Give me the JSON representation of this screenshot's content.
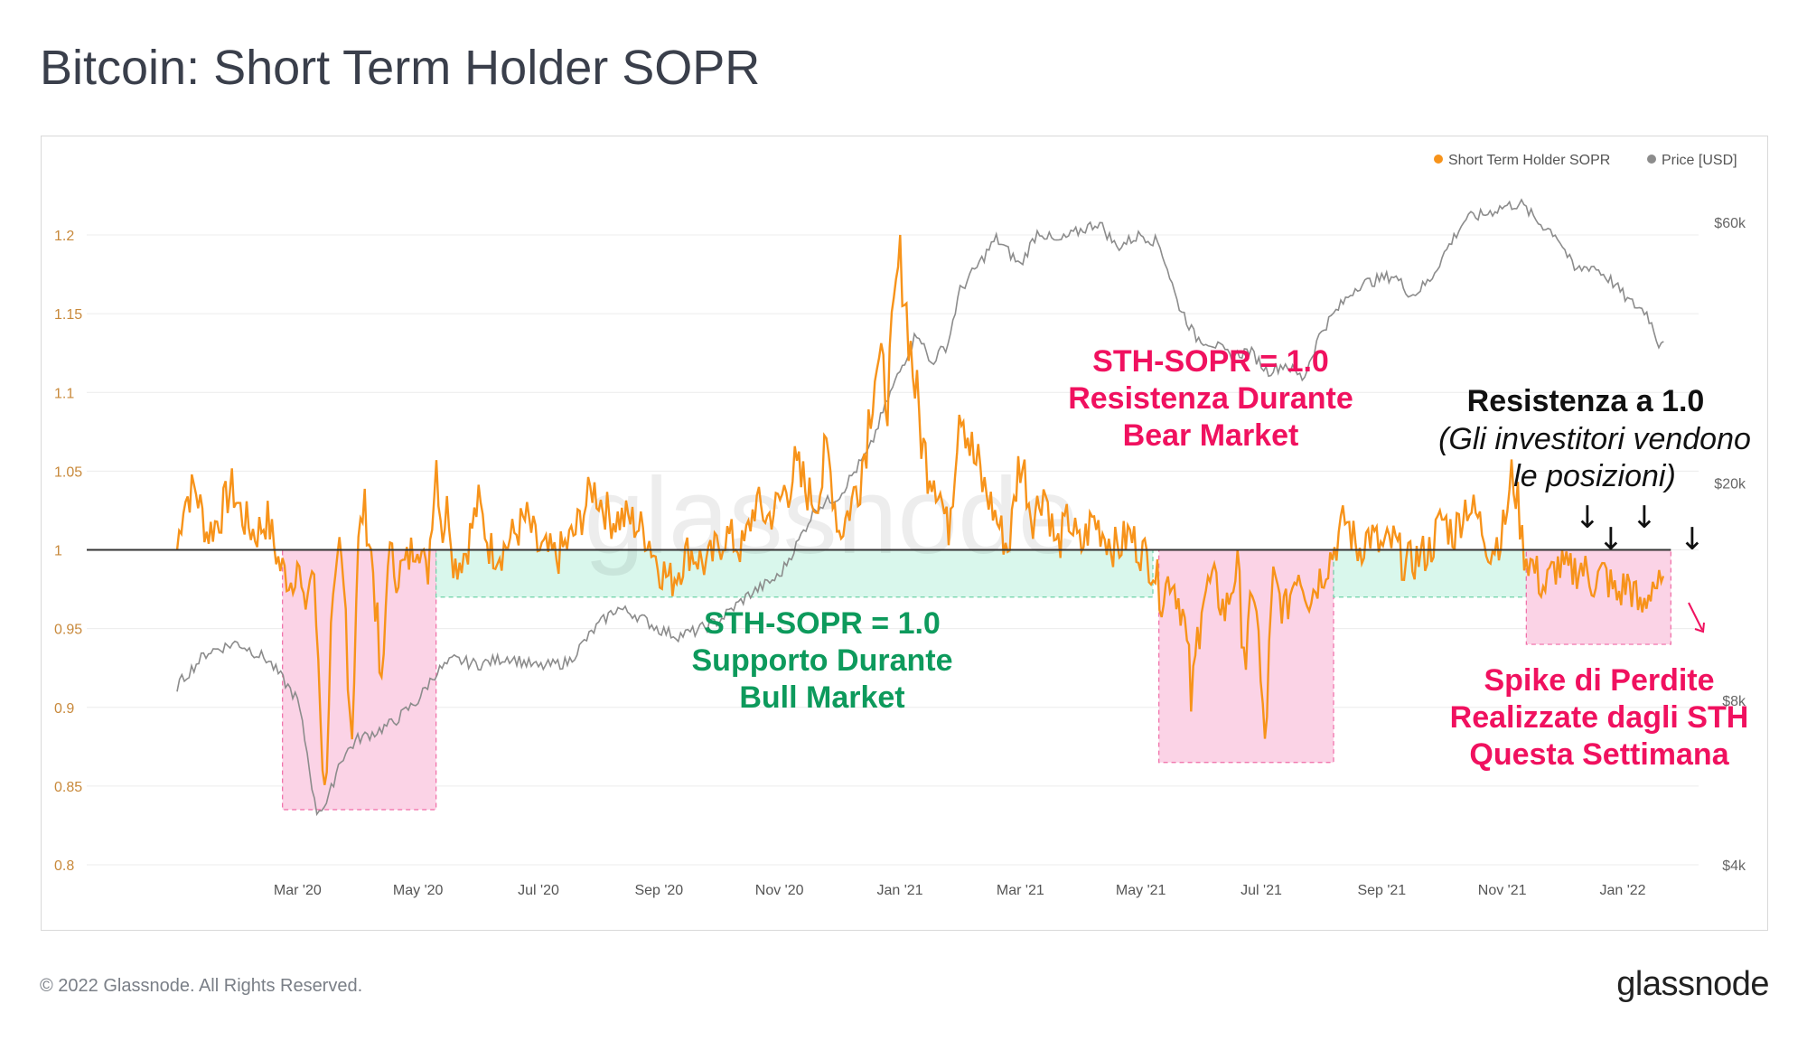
{
  "header": {
    "title": "Bitcoin: Short Term Holder SOPR"
  },
  "footer": {
    "copyright": "© 2022 Glassnode. All Rights Reserved.",
    "logo": "glassnode"
  },
  "watermark": "glassnode",
  "colors": {
    "sopr": "#f7931a",
    "price": "#8c8c8c",
    "baseline": "#333333",
    "zone_pink": "#fbd3e6",
    "zone_green": "#d9f7ec",
    "accent_pink": "#f0115f",
    "accent_green": "#0d9a5c"
  },
  "annotations": {
    "bear": [
      "STH-SOPR = 1.0",
      "Resistenza Durante",
      "Bear Market"
    ],
    "bull": [
      "STH-SOPR = 1.0",
      "Supporto Durante",
      "Bull Market"
    ],
    "resistance_title": "Resistenza a 1.0",
    "resistance_sub": [
      "(Gli investitori vendono",
      "le posizioni)"
    ],
    "spike": [
      "Spike di Perdite",
      "Realizzate dagli STH",
      "Questa Settimana"
    ],
    "arrow_glyph": "↓"
  },
  "chart_data": {
    "type": "line",
    "title": "Bitcoin: Short Term Holder SOPR",
    "legend": {
      "position": "top-right",
      "entries": [
        {
          "name": "Short Term Holder SOPR",
          "color": "#f7931a"
        },
        {
          "name": "Price [USD]",
          "color": "#8c8c8c"
        }
      ]
    },
    "x_range_months": [
      0,
      24
    ],
    "x_ticks": [
      {
        "label": "Mar '20",
        "m": 2
      },
      {
        "label": "May '20",
        "m": 4
      },
      {
        "label": "Jul '20",
        "m": 6
      },
      {
        "label": "Sep '20",
        "m": 8
      },
      {
        "label": "Nov '20",
        "m": 10
      },
      {
        "label": "Jan '21",
        "m": 12
      },
      {
        "label": "Mar '21",
        "m": 14
      },
      {
        "label": "May '21",
        "m": 16
      },
      {
        "label": "Jul '21",
        "m": 18
      },
      {
        "label": "Sep '21",
        "m": 20
      },
      {
        "label": "Nov '21",
        "m": 22
      },
      {
        "label": "Jan '22",
        "m": 24
      }
    ],
    "y_left": {
      "min": 0.8,
      "max": 1.2,
      "ticks": [
        "0.8",
        "0.85",
        "0.9",
        "0.95",
        "1",
        "1.05",
        "1.1",
        "1.15",
        "1.2"
      ]
    },
    "y_right": {
      "scale": "log",
      "ticks": [
        {
          "label": "$4k",
          "v": 4000
        },
        {
          "label": "$8k",
          "v": 8000
        },
        {
          "label": "$20k",
          "v": 20000
        },
        {
          "label": "$60k",
          "v": 60000
        }
      ]
    },
    "baseline": 1.0,
    "zones": [
      {
        "type": "pink",
        "m0": 1.75,
        "m1": 4.3,
        "y0": 0.835,
        "y1": 1.0
      },
      {
        "type": "green",
        "m0": 4.3,
        "m1": 16.2,
        "y0": 0.97,
        "y1": 1.0
      },
      {
        "type": "pink",
        "m0": 16.3,
        "m1": 19.2,
        "y0": 0.865,
        "y1": 1.0
      },
      {
        "type": "green",
        "m0": 19.2,
        "m1": 22.4,
        "y0": 0.97,
        "y1": 1.0
      },
      {
        "type": "pink",
        "m0": 22.4,
        "m1": 24.8,
        "y0": 0.94,
        "y1": 1.0
      }
    ],
    "sopr_anchors": [
      [
        0.0,
        1.0
      ],
      [
        0.1,
        1.03
      ],
      [
        0.3,
        1.04
      ],
      [
        0.5,
        1.01
      ],
      [
        0.7,
        1.02
      ],
      [
        0.9,
        1.04
      ],
      [
        1.1,
        1.02
      ],
      [
        1.3,
        1.01
      ],
      [
        1.5,
        1.02
      ],
      [
        1.7,
        0.99
      ],
      [
        1.9,
        0.98
      ],
      [
        2.0,
        0.995
      ],
      [
        2.1,
        0.96
      ],
      [
        2.25,
        0.99
      ],
      [
        2.35,
        0.93
      ],
      [
        2.45,
        0.84
      ],
      [
        2.55,
        0.94
      ],
      [
        2.7,
        1.0
      ],
      [
        2.8,
        0.96
      ],
      [
        2.9,
        0.88
      ],
      [
        3.0,
        1.0
      ],
      [
        3.1,
        1.03
      ],
      [
        3.25,
        0.99
      ],
      [
        3.4,
        0.9
      ],
      [
        3.5,
        1.0
      ],
      [
        3.65,
        0.985
      ],
      [
        3.8,
        0.99
      ],
      [
        4.0,
        1.01
      ],
      [
        4.15,
        0.98
      ],
      [
        4.3,
        1.06
      ],
      [
        4.4,
        1.01
      ],
      [
        4.5,
        1.03
      ],
      [
        4.6,
        0.99
      ],
      [
        4.8,
        1.0
      ],
      [
        5.0,
        1.03
      ],
      [
        5.2,
        1.0
      ],
      [
        5.4,
        1.0
      ],
      [
        5.6,
        1.01
      ],
      [
        5.8,
        1.02
      ],
      [
        6.0,
        1.0
      ],
      [
        6.3,
        0.995
      ],
      [
        6.6,
        1.01
      ],
      [
        6.9,
        1.04
      ],
      [
        7.2,
        1.02
      ],
      [
        7.5,
        1.02
      ],
      [
        7.8,
        1.01
      ],
      [
        8.0,
        0.99
      ],
      [
        8.2,
        0.98
      ],
      [
        8.5,
        1.0
      ],
      [
        8.8,
        0.99
      ],
      [
        9.1,
        1.01
      ],
      [
        9.4,
        1.0
      ],
      [
        9.6,
        1.03
      ],
      [
        9.8,
        1.02
      ],
      [
        10.0,
        1.03
      ],
      [
        10.2,
        1.05
      ],
      [
        10.4,
        1.04
      ],
      [
        10.6,
        1.03
      ],
      [
        10.8,
        1.06
      ],
      [
        11.0,
        1.01
      ],
      [
        11.2,
        1.03
      ],
      [
        11.4,
        1.06
      ],
      [
        11.6,
        1.12
      ],
      [
        11.8,
        1.1
      ],
      [
        12.0,
        1.19
      ],
      [
        12.2,
        1.12
      ],
      [
        12.4,
        1.06
      ],
      [
        12.6,
        1.05
      ],
      [
        12.8,
        1.01
      ],
      [
        13.0,
        1.1
      ],
      [
        13.2,
        1.06
      ],
      [
        13.4,
        1.04
      ],
      [
        13.6,
        1.02
      ],
      [
        13.8,
        1.0
      ],
      [
        14.0,
        1.06
      ],
      [
        14.2,
        1.02
      ],
      [
        14.4,
        1.04
      ],
      [
        14.6,
        1.0
      ],
      [
        14.8,
        1.02
      ],
      [
        15.0,
        1.0
      ],
      [
        15.2,
        1.02
      ],
      [
        15.4,
        1.01
      ],
      [
        15.6,
        1.0
      ],
      [
        15.8,
        1.01
      ],
      [
        16.0,
        1.0
      ],
      [
        16.2,
        0.99
      ],
      [
        16.35,
        0.97
      ],
      [
        16.5,
        0.985
      ],
      [
        16.7,
        0.96
      ],
      [
        16.85,
        0.9
      ],
      [
        17.0,
        0.97
      ],
      [
        17.2,
        0.98
      ],
      [
        17.4,
        0.96
      ],
      [
        17.6,
        0.99
      ],
      [
        17.75,
        0.93
      ],
      [
        17.9,
        0.98
      ],
      [
        18.05,
        0.87
      ],
      [
        18.2,
        0.98
      ],
      [
        18.4,
        0.96
      ],
      [
        18.6,
        0.99
      ],
      [
        18.8,
        0.97
      ],
      [
        19.0,
        0.985
      ],
      [
        19.2,
        1.0
      ],
      [
        19.4,
        1.02
      ],
      [
        19.6,
        1.0
      ],
      [
        19.8,
        1.01
      ],
      [
        20.0,
        1.0
      ],
      [
        20.2,
        1.005
      ],
      [
        20.4,
        0.99
      ],
      [
        20.6,
        0.995
      ],
      [
        20.8,
        1.0
      ],
      [
        21.0,
        1.02
      ],
      [
        21.2,
        1.01
      ],
      [
        21.4,
        1.03
      ],
      [
        21.6,
        1.02
      ],
      [
        21.8,
        1.0
      ],
      [
        22.0,
        1.01
      ],
      [
        22.2,
        1.05
      ],
      [
        22.35,
        1.0
      ],
      [
        22.5,
        0.99
      ],
      [
        22.7,
        0.975
      ],
      [
        22.9,
        0.99
      ],
      [
        23.1,
        0.985
      ],
      [
        23.3,
        0.99
      ],
      [
        23.5,
        0.98
      ],
      [
        23.7,
        0.985
      ],
      [
        23.9,
        0.97
      ],
      [
        24.1,
        0.98
      ],
      [
        24.3,
        0.96
      ],
      [
        24.5,
        0.98
      ],
      [
        24.7,
        0.97
      ]
    ],
    "price_anchors": [
      [
        0.0,
        8500
      ],
      [
        0.5,
        9800
      ],
      [
        1.0,
        10200
      ],
      [
        1.5,
        9500
      ],
      [
        2.0,
        8000
      ],
      [
        2.3,
        5000
      ],
      [
        2.5,
        5200
      ],
      [
        2.7,
        6200
      ],
      [
        3.0,
        6800
      ],
      [
        3.3,
        7000
      ],
      [
        3.6,
        7300
      ],
      [
        4.0,
        8000
      ],
      [
        4.3,
        9000
      ],
      [
        4.6,
        9500
      ],
      [
        5.0,
        9300
      ],
      [
        5.5,
        9600
      ],
      [
        6.0,
        9200
      ],
      [
        6.5,
        9400
      ],
      [
        7.0,
        11000
      ],
      [
        7.3,
        11800
      ],
      [
        7.6,
        11500
      ],
      [
        8.0,
        10800
      ],
      [
        8.3,
        10500
      ],
      [
        8.6,
        10700
      ],
      [
        9.0,
        11200
      ],
      [
        9.5,
        12500
      ],
      [
        10.0,
        13500
      ],
      [
        10.3,
        15500
      ],
      [
        10.6,
        18000
      ],
      [
        11.0,
        19000
      ],
      [
        11.5,
        23000
      ],
      [
        12.0,
        32000
      ],
      [
        12.3,
        38000
      ],
      [
        12.5,
        33000
      ],
      [
        12.8,
        36000
      ],
      [
        13.0,
        45000
      ],
      [
        13.3,
        50000
      ],
      [
        13.6,
        56000
      ],
      [
        14.0,
        50000
      ],
      [
        14.3,
        58000
      ],
      [
        14.6,
        55000
      ],
      [
        15.0,
        58000
      ],
      [
        15.3,
        60000
      ],
      [
        15.6,
        54000
      ],
      [
        16.0,
        57000
      ],
      [
        16.3,
        55000
      ],
      [
        16.6,
        43000
      ],
      [
        16.9,
        37000
      ],
      [
        17.2,
        36000
      ],
      [
        17.5,
        34000
      ],
      [
        17.8,
        35000
      ],
      [
        18.1,
        32000
      ],
      [
        18.4,
        33000
      ],
      [
        18.7,
        31000
      ],
      [
        19.0,
        38000
      ],
      [
        19.3,
        42000
      ],
      [
        19.6,
        46000
      ],
      [
        19.9,
        47000
      ],
      [
        20.2,
        48000
      ],
      [
        20.5,
        44000
      ],
      [
        20.8,
        47000
      ],
      [
        21.1,
        54000
      ],
      [
        21.4,
        61000
      ],
      [
        21.7,
        62000
      ],
      [
        22.0,
        64000
      ],
      [
        22.3,
        65000
      ],
      [
        22.6,
        60000
      ],
      [
        22.9,
        57000
      ],
      [
        23.2,
        49000
      ],
      [
        23.5,
        50000
      ],
      [
        23.8,
        47000
      ],
      [
        24.1,
        43000
      ],
      [
        24.4,
        41000
      ],
      [
        24.6,
        36000
      ],
      [
        24.7,
        37000
      ]
    ]
  }
}
